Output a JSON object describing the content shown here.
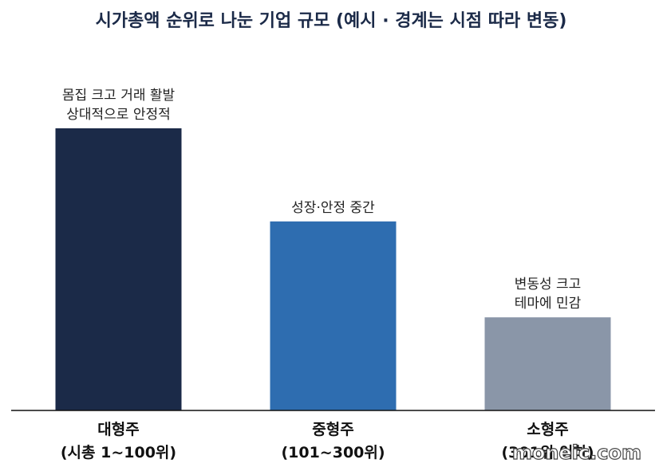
{
  "chart_data": {
    "type": "bar",
    "title": "시가총액 순위로 나눈 기업 규모 (예시 · 경계는 시점 따라 변동)",
    "xlabel": "",
    "ylabel": "",
    "categories": [
      [
        "대형주",
        "(시총 1~100위)"
      ],
      [
        "중형주",
        "(101~300위)"
      ],
      [
        "소형주",
        "(301위 이하)"
      ]
    ],
    "values": [
      100,
      67,
      33
    ],
    "bar_annotations": [
      [
        "몸집 크고 거래 활발",
        "상대적으로 안정적"
      ],
      [
        "성장·안정 중간"
      ],
      [
        "변동성 크고",
        "테마에 민감"
      ]
    ],
    "colors": [
      "#1b2a48",
      "#2e6db0",
      "#8a96a8"
    ],
    "ylim": [
      0,
      100
    ],
    "grid": false,
    "show_y_axis": false
  },
  "watermark": "moneic.com"
}
